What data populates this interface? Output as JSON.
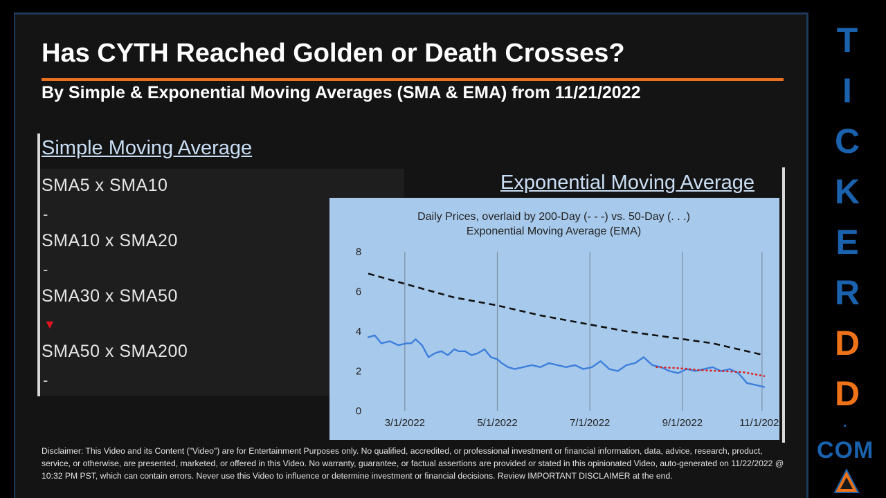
{
  "header": {
    "title": "Has CYTH Reached Golden or Death Crosses?",
    "subtitle": "By Simple & Exponential Moving Averages (SMA & EMA) from 11/21/2022"
  },
  "sma": {
    "title": "Simple Moving Average",
    "items": [
      {
        "label": "SMA5 x SMA10",
        "signal": "-"
      },
      {
        "label": "SMA10 x SMA20",
        "signal": "-"
      },
      {
        "label": "SMA30 x SMA50",
        "signal": "▼"
      },
      {
        "label": "SMA50 x SMA200",
        "signal": "-"
      }
    ]
  },
  "ema": {
    "title": "Exponential Moving Average"
  },
  "chart_data": {
    "type": "line",
    "title": "Daily Prices, overlaid by 200-Day (- - -) vs. 50-Day (. . .)",
    "subtitle": "Exponential Moving Average (EMA)",
    "x_ticks": [
      "3/1/2022",
      "5/1/2022",
      "7/1/2022",
      "9/1/2022",
      "11/1/2022"
    ],
    "y_ticks": [
      "0",
      "2",
      "4",
      "6",
      "8"
    ],
    "ylim": [
      0,
      8
    ],
    "xlim": [
      0,
      9.2
    ],
    "series": [
      {
        "name": "Daily Price",
        "style": "solid",
        "color": "#3d7fdc",
        "x": [
          0,
          0.15,
          0.3,
          0.5,
          0.7,
          0.9,
          1.0,
          1.1,
          1.25,
          1.4,
          1.55,
          1.7,
          1.85,
          2.0,
          2.1,
          2.25,
          2.4,
          2.55,
          2.7,
          2.85,
          3.0,
          3.1,
          3.25,
          3.4,
          3.6,
          3.8,
          4.0,
          4.2,
          4.4,
          4.6,
          4.8,
          5.0,
          5.2,
          5.4,
          5.6,
          5.8,
          6.0,
          6.2,
          6.4,
          6.6,
          6.8,
          7.0,
          7.2,
          7.4,
          7.6,
          7.8,
          8.0,
          8.2,
          8.4,
          8.6,
          8.8,
          9.0,
          9.2
        ],
        "y": [
          3.7,
          3.8,
          3.4,
          3.5,
          3.3,
          3.4,
          3.4,
          3.6,
          3.3,
          2.7,
          2.9,
          3.0,
          2.8,
          3.1,
          3.0,
          3.0,
          2.8,
          2.9,
          3.1,
          2.7,
          2.6,
          2.4,
          2.2,
          2.1,
          2.2,
          2.3,
          2.2,
          2.4,
          2.3,
          2.2,
          2.3,
          2.1,
          2.2,
          2.5,
          2.1,
          2.0,
          2.3,
          2.4,
          2.7,
          2.3,
          2.2,
          2.0,
          1.9,
          2.1,
          2.0,
          2.1,
          2.2,
          2.0,
          2.1,
          1.9,
          1.4,
          1.3,
          1.2
        ]
      },
      {
        "name": "200-Day EMA",
        "style": "dashed",
        "color": "#111111",
        "x": [
          0,
          1,
          2,
          3,
          4,
          5,
          6,
          7,
          8,
          9.2
        ],
        "y": [
          6.9,
          6.3,
          5.7,
          5.3,
          4.8,
          4.4,
          4.0,
          3.7,
          3.4,
          2.8
        ]
      },
      {
        "name": "50-Day EMA",
        "style": "dotted",
        "color": "#dd2222",
        "x": [
          6.7,
          7.2,
          7.7,
          8.2,
          8.7,
          9.2
        ],
        "y": [
          2.2,
          2.15,
          2.05,
          2.0,
          1.95,
          1.75
        ]
      }
    ]
  },
  "disclaimer": "Disclaimer: This Video and its Content (\"Video\") are for Entertainment Purposes only. No qualified, accredited, or professional investment or financial information, data, advice, research, product, service, or otherwise, are presented, marketed, or offered in this Video. No warranty, guarantee, or factual assertions are provided or stated in this opinionated Video, auto-generated on 11/22/2022 @ 10:32 PM PST, which can contain errors. Never use this Video to influence or determine investment or financial decisions. Review IMPORTANT DISCLAIMER at the end.",
  "brand": {
    "letters": [
      "T",
      "I",
      "C",
      "K",
      "E",
      "R",
      "D",
      "D"
    ],
    "dot": ".",
    "com": "COM",
    "colors": {
      "blue": "#1a62ad",
      "orange": "#ee7218"
    }
  }
}
